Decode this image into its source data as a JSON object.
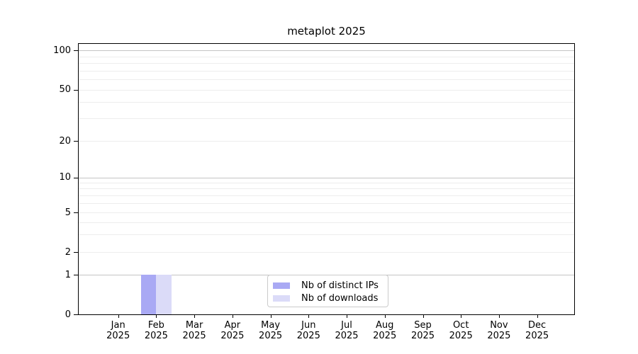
{
  "chart_data": {
    "type": "bar",
    "title": "metaplot 2025",
    "x_axis": {
      "months": [
        "Jan",
        "Feb",
        "Mar",
        "Apr",
        "May",
        "Jun",
        "Jul",
        "Aug",
        "Sep",
        "Oct",
        "Nov",
        "Dec"
      ],
      "year": "2025"
    },
    "y_axis": {
      "tick_labels": [
        0,
        1,
        2,
        5,
        10,
        20,
        50,
        100
      ],
      "major_gridlines": [
        1,
        10,
        100
      ],
      "minor_gridlines": [
        2,
        3,
        4,
        5,
        6,
        7,
        8,
        9,
        20,
        30,
        40,
        50,
        60,
        70,
        80,
        90
      ],
      "scale": "log-like with 0 baseline",
      "ylim_top": 115
    },
    "series": [
      {
        "name": "Nb of distinct IPs",
        "color": "#a9a9f4",
        "values": [
          0,
          1,
          0,
          0,
          0,
          0,
          0,
          0,
          0,
          0,
          0,
          0
        ]
      },
      {
        "name": "Nb of downloads",
        "color": "#dbdbf8",
        "values": [
          0,
          1,
          0,
          0,
          0,
          0,
          0,
          0,
          0,
          0,
          0,
          0
        ]
      }
    ],
    "legend_position": "inside bottom-center",
    "grid": "horizontal only"
  },
  "colors": {
    "background": "#ffffff",
    "spine": "#000000",
    "grid_major": "#c4c4c4",
    "grid_minor": "#ededed",
    "text": "#000000"
  }
}
